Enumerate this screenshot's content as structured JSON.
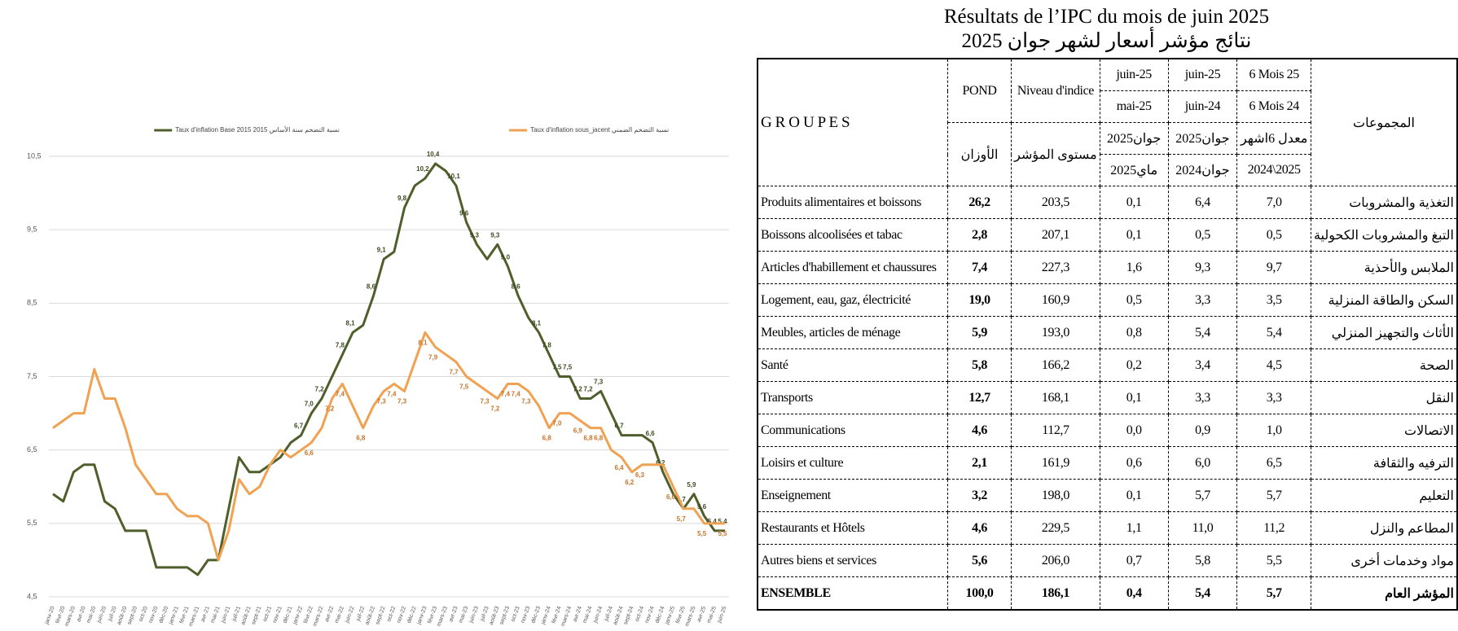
{
  "chart_data": {
    "type": "line",
    "categories": [
      "janv-20",
      "févr-20",
      "mars-20",
      "avr-20",
      "mai-20",
      "juin-20",
      "juil-20",
      "août-20",
      "sept-20",
      "oct-20",
      "nov-20",
      "déc-20",
      "janv-21",
      "févr-21",
      "mars-21",
      "avr-21",
      "mai-21",
      "juin-21",
      "juil-21",
      "août-21",
      "sept-21",
      "oct-21",
      "nov-21",
      "déc-21",
      "janv-22",
      "févr-22",
      "mars-22",
      "avr-22",
      "mai-22",
      "juin-22",
      "juil-22",
      "août-22",
      "sept-22",
      "oct-22",
      "nov-22",
      "déc-22",
      "janv-23",
      "févr-23",
      "mars-23",
      "avr-23",
      "mai-23",
      "juin-23",
      "juil-23",
      "août-23",
      "sept-23",
      "oct-23",
      "nov-23",
      "déc-23",
      "janv-24",
      "févr-24",
      "mars-24",
      "avr-24",
      "mai-24",
      "juin-24",
      "juil-24",
      "août-24",
      "sept-24",
      "oct-24",
      "nov-24",
      "déc-24",
      "janv-25",
      "févr-25",
      "mars-25",
      "avr-25",
      "mai-25",
      "juin-25"
    ],
    "series": [
      {
        "name": "Taux d'inflation Base 2015 نسبة التضخم سنة الأساس 2015",
        "color": "#4f5f2c",
        "values": [
          5.9,
          5.8,
          6.2,
          6.3,
          6.3,
          5.8,
          5.7,
          5.4,
          5.4,
          5.4,
          4.9,
          4.9,
          4.9,
          4.9,
          4.8,
          5.0,
          5.0,
          5.7,
          6.4,
          6.2,
          6.2,
          6.3,
          6.4,
          6.6,
          6.7,
          7.0,
          7.2,
          7.5,
          7.8,
          8.1,
          8.2,
          8.6,
          9.1,
          9.2,
          9.8,
          10.1,
          10.2,
          10.4,
          10.3,
          10.1,
          9.6,
          9.3,
          9.1,
          9.3,
          9.0,
          8.6,
          8.3,
          8.1,
          7.8,
          7.5,
          7.5,
          7.2,
          7.2,
          7.3,
          7.0,
          6.7,
          6.7,
          6.7,
          6.6,
          6.2,
          5.9,
          5.7,
          5.9,
          5.6,
          5.4,
          5.4
        ],
        "value_labels": [
          null,
          null,
          null,
          null,
          null,
          null,
          null,
          null,
          null,
          null,
          null,
          null,
          null,
          null,
          null,
          null,
          null,
          null,
          null,
          null,
          null,
          null,
          null,
          null,
          "6,7",
          "7,0",
          "7,2",
          null,
          "7,8",
          "8,1",
          null,
          "8,6",
          "9,1",
          null,
          "9,8",
          null,
          "10,2",
          "10,4",
          null,
          "10,1",
          "9,6",
          "9,3",
          null,
          "9,3",
          "9,0",
          "8,6",
          null,
          "8,1",
          "7,8",
          "7,5",
          "7,5",
          "7,2",
          "7,2",
          "7,3",
          null,
          "6,7",
          null,
          null,
          "6,6",
          "6,2",
          null,
          "5,7",
          "5,9",
          "5,6",
          "5,4",
          "5,4"
        ]
      },
      {
        "name": "Taux d'inflation sous_jacent نسبة التضخم الضمني",
        "color": "#f0a252",
        "values": [
          6.8,
          6.9,
          7.0,
          7.0,
          7.6,
          7.2,
          7.2,
          6.8,
          6.3,
          6.1,
          5.9,
          5.9,
          5.7,
          5.6,
          5.6,
          5.5,
          5.0,
          5.4,
          6.1,
          5.9,
          6.0,
          6.3,
          6.5,
          6.4,
          6.5,
          6.6,
          6.8,
          7.2,
          7.4,
          7.1,
          6.8,
          7.1,
          7.3,
          7.4,
          7.3,
          7.7,
          8.1,
          7.9,
          7.8,
          7.7,
          7.5,
          7.4,
          7.3,
          7.2,
          7.4,
          7.4,
          7.3,
          7.1,
          6.8,
          7.0,
          7.0,
          6.9,
          6.8,
          6.8,
          6.5,
          6.4,
          6.2,
          6.3,
          6.3,
          6.3,
          6.0,
          5.7,
          5.7,
          5.5,
          5.5,
          5.5
        ],
        "value_labels": [
          null,
          null,
          null,
          null,
          null,
          null,
          null,
          null,
          null,
          null,
          null,
          null,
          null,
          null,
          null,
          null,
          null,
          null,
          null,
          null,
          null,
          null,
          null,
          null,
          null,
          "6,6",
          null,
          "7,2",
          "7,4",
          null,
          "6,8",
          null,
          "7,3",
          "7,4",
          "7,3",
          null,
          "8,1",
          "7,9",
          null,
          "7,7",
          "7,5",
          null,
          "7,3",
          "7,2",
          "7,4",
          "7,4",
          "7,3",
          null,
          "6,8",
          "7,0",
          null,
          "6,9",
          "6,8",
          "6,8",
          null,
          "6,4",
          "6,2",
          "6,3",
          null,
          null,
          "6,0",
          "5,7",
          null,
          "5,5",
          null,
          "5,5"
        ]
      }
    ],
    "ylim": [
      4.5,
      10.5
    ],
    "yticks": [
      {
        "value": 4.5,
        "label": "4,5"
      },
      {
        "value": 5.5,
        "label": "5,5"
      },
      {
        "value": 6.5,
        "label": "6,5"
      },
      {
        "value": 7.5,
        "label": "7,5"
      },
      {
        "value": 8.5,
        "label": "8,5"
      },
      {
        "value": 9.5,
        "label": "9,5"
      },
      {
        "value": 10.5,
        "label": "10,5"
      }
    ],
    "grid": true,
    "legend": "top"
  },
  "table": {
    "title": "Résultats de l’IPC du mois de juin 2025",
    "subtitle": "نتائج مؤشر أسعار لشهر جوان 2025",
    "header": {
      "groupes": "G R O U P E S",
      "groupes_ar": "المجموعات",
      "pond": "POND",
      "pond_ar": "الأوزان",
      "niveau": "Niveau d'indice",
      "niveau_ar": "مستوى المؤشر",
      "columns": [
        {
          "top": "juin-25",
          "bottom": "mai-25",
          "top_ar": "جوان2025",
          "bottom_ar": "ماي2025"
        },
        {
          "top": "juin-25",
          "bottom": "juin-24",
          "top_ar": "جوان2025",
          "bottom_ar": "جوان2024"
        },
        {
          "top": "6 Mois 25",
          "bottom": "6 Mois 24",
          "top_ar": "معدل 6اشهر",
          "bottom_ar": "2024\\2025"
        }
      ]
    },
    "rows": [
      [
        "Produits alimentaires et boissons",
        "26,2",
        "203,5",
        "0,1",
        "6,4",
        "7,0",
        "التغذية والمشروبات"
      ],
      [
        "Boissons alcoolisées et tabac",
        "2,8",
        "207,1",
        "0,1",
        "0,5",
        "0,5",
        "التبغ والمشروبات الكحولية"
      ],
      [
        "Articles d'habillement et chaussures",
        "7,4",
        "227,3",
        "1,6",
        "9,3",
        "9,7",
        "الملابس والأحذية"
      ],
      [
        "Logement, eau, gaz, électricité",
        "19,0",
        "160,9",
        "0,5",
        "3,3",
        "3,5",
        "السكن والطاقة المنزلية"
      ],
      [
        "Meubles, articles de ménage",
        "5,9",
        "193,0",
        "0,8",
        "5,4",
        "5,4",
        "الأثاث والتجهيز المنزلي"
      ],
      [
        "Santé",
        "5,8",
        "166,2",
        "0,2",
        "3,4",
        "4,5",
        "الصحة"
      ],
      [
        "Transports",
        "12,7",
        "168,1",
        "0,1",
        "3,3",
        "3,3",
        "النقل"
      ],
      [
        "Communications",
        "4,6",
        "112,7",
        "0,0",
        "0,9",
        "1,0",
        "الاتصالات"
      ],
      [
        "Loisirs et culture",
        "2,1",
        "161,9",
        "0,6",
        "6,0",
        "6,5",
        "الترفيه والثقافة"
      ],
      [
        "Enseignement",
        "3,2",
        "198,0",
        "0,1",
        "5,7",
        "5,7",
        "التعليم"
      ],
      [
        "Restaurants et Hôtels",
        "4,6",
        "229,5",
        "1,1",
        "11,0",
        "11,2",
        "المطاعم والنزل"
      ],
      [
        "Autres biens et services",
        "5,6",
        "206,0",
        "0,7",
        "5,8",
        "5,5",
        "مواد وخدمات أخرى"
      ],
      [
        "ENSEMBLE",
        "100,0",
        "186,1",
        "0,4",
        "5,4",
        "5,7",
        "المؤشر العام"
      ]
    ]
  }
}
